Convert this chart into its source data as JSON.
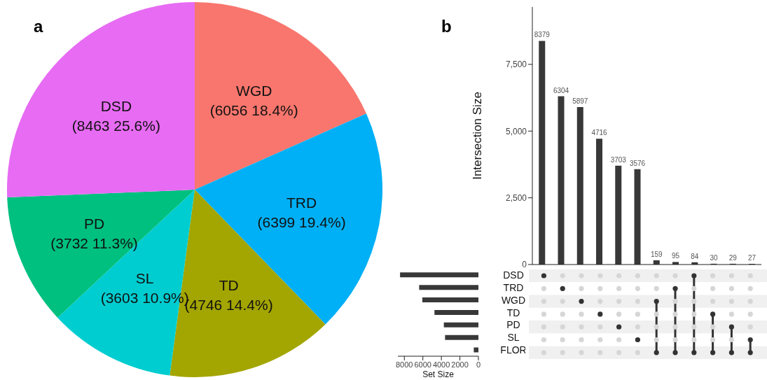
{
  "chart_data": [
    {
      "type": "pie",
      "title": "a",
      "categories": [
        "WGD",
        "TRD",
        "TD",
        "SL",
        "PD",
        "DSD"
      ],
      "values": [
        6056,
        6399,
        4746,
        3603,
        3732,
        8463
      ],
      "value_labels": [
        "(6056 18.4%)",
        "(6399 19.4%)",
        "(4746 14.4%)",
        "(3603 10.9%)",
        "(3732 11.3%)",
        "(8463 25.6%)"
      ],
      "colors": [
        "#f8766d",
        "#00b0f6",
        "#a3a500",
        "#00cdd0",
        "#00c07f",
        "#e76bf3"
      ],
      "legend": false
    },
    {
      "type": "bar",
      "title": "b",
      "ylabel": "Intersection Size",
      "categories": [
        null,
        null,
        null,
        null,
        null,
        null,
        null,
        null,
        null,
        null,
        null,
        null
      ],
      "values": [
        8379,
        6304,
        5897,
        4716,
        3703,
        3576,
        159,
        95,
        84,
        30,
        29,
        27
      ],
      "color": "#383838",
      "ylim": [
        0,
        9650
      ],
      "yticks": [
        0,
        {
          "value": 2500,
          "label": "2,500"
        },
        {
          "value": 5000,
          "label": "5,000"
        },
        {
          "value": 7500,
          "label": "7,500"
        }
      ],
      "data_labels": true,
      "grid": false,
      "legend": false
    },
    {
      "type": "bar",
      "orientation": "horizontal",
      "xlabel": "Set Size",
      "categories": [
        "DSD",
        "TRD",
        "WGD",
        "TD",
        "PD",
        "SL",
        "FLOR"
      ],
      "values": [
        8463,
        6399,
        6056,
        4746,
        3732,
        3603,
        500
      ],
      "color": "#383838",
      "xlim": [
        8700,
        0
      ],
      "xticks": [
        8000,
        6000,
        4000,
        2000,
        0
      ]
    }
  ]
}
